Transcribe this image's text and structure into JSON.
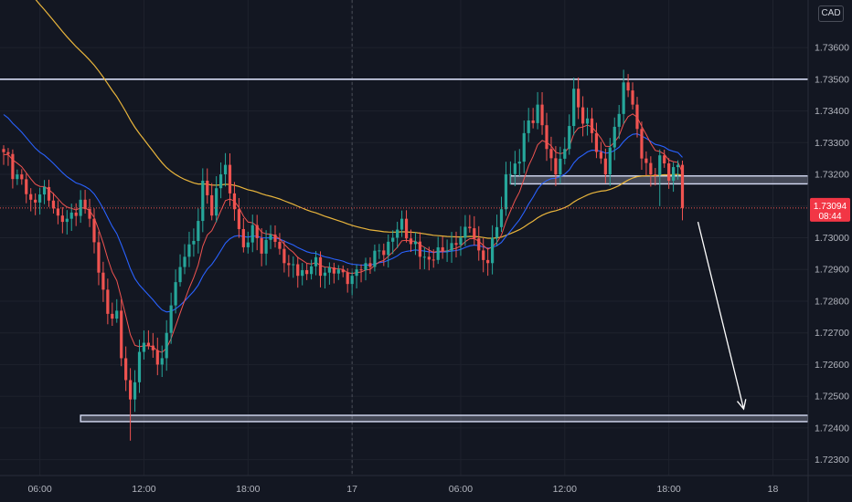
{
  "currency": "CAD",
  "colors": {
    "background": "#131722",
    "grid": "#1e222d",
    "up": "#26a69a",
    "down": "#ef5350",
    "ema_fast": "#ef5350",
    "ema_mid": "#2962ff",
    "ema_slow": "#e9b53c",
    "level": "#d6dcf5",
    "price_tag": "#f23645"
  },
  "price_tag": {
    "value": "1.73094",
    "countdown": "08:44"
  },
  "chart_data": {
    "type": "candlestick",
    "title": "",
    "ylim": [
      1.7225,
      1.7375
    ],
    "y_ticks": [
      "1.73600",
      "1.73500",
      "1.73400",
      "1.73300",
      "1.73200",
      "1.73100",
      "1.73000",
      "1.72900",
      "1.72800",
      "1.72700",
      "1.72600",
      "1.72500",
      "1.72400",
      "1.72300"
    ],
    "x_ticks": [
      "06:00",
      "12:00",
      "18:00",
      "17",
      "06:00",
      "12:00",
      "18:00",
      "18"
    ],
    "day_separator": "17",
    "keyframes": [
      {
        "i": 0,
        "p": 1.7327
      },
      {
        "i": 6,
        "p": 1.7312
      },
      {
        "i": 9,
        "p": 1.7316
      },
      {
        "i": 12,
        "p": 1.7307
      },
      {
        "i": 14,
        "p": 1.7306
      },
      {
        "i": 17,
        "p": 1.7312
      },
      {
        "i": 19,
        "p": 1.7306
      },
      {
        "i": 21,
        "p": 1.7289
      },
      {
        "i": 23,
        "p": 1.7276
      },
      {
        "i": 25,
        "p": 1.7277
      },
      {
        "i": 26,
        "p": 1.7262
      },
      {
        "i": 28,
        "p": 1.7249
      },
      {
        "i": 30,
        "p": 1.7264
      },
      {
        "i": 32,
        "p": 1.7266
      },
      {
        "i": 34,
        "p": 1.726
      },
      {
        "i": 36,
        "p": 1.727
      },
      {
        "i": 38,
        "p": 1.7286
      },
      {
        "i": 40,
        "p": 1.7294
      },
      {
        "i": 42,
        "p": 1.7299
      },
      {
        "i": 44,
        "p": 1.7318
      },
      {
        "i": 46,
        "p": 1.7307
      },
      {
        "i": 48,
        "p": 1.732
      },
      {
        "i": 49,
        "p": 1.7323
      },
      {
        "i": 50,
        "p": 1.7314
      },
      {
        "i": 51,
        "p": 1.7309
      },
      {
        "i": 53,
        "p": 1.7297
      },
      {
        "i": 55,
        "p": 1.7304
      },
      {
        "i": 57,
        "p": 1.7295
      },
      {
        "i": 59,
        "p": 1.7301
      },
      {
        "i": 62,
        "p": 1.7292
      },
      {
        "i": 65,
        "p": 1.7288
      },
      {
        "i": 68,
        "p": 1.7291
      },
      {
        "i": 71,
        "p": 1.7289
      },
      {
        "i": 74,
        "p": 1.729
      },
      {
        "i": 77,
        "p": 1.7288
      },
      {
        "i": 80,
        "p": 1.7292
      },
      {
        "i": 83,
        "p": 1.7296
      },
      {
        "i": 86,
        "p": 1.73
      },
      {
        "i": 88,
        "p": 1.7306
      },
      {
        "i": 90,
        "p": 1.7298
      },
      {
        "i": 92,
        "p": 1.7294
      },
      {
        "i": 95,
        "p": 1.7293
      },
      {
        "i": 98,
        "p": 1.7296
      },
      {
        "i": 101,
        "p": 1.73
      },
      {
        "i": 103,
        "p": 1.7303
      },
      {
        "i": 105,
        "p": 1.7296
      },
      {
        "i": 107,
        "p": 1.7292
      },
      {
        "i": 108,
        "p": 1.73
      },
      {
        "i": 110,
        "p": 1.7309
      },
      {
        "i": 111,
        "p": 1.732
      },
      {
        "i": 114,
        "p": 1.7324
      },
      {
        "i": 116,
        "p": 1.7337
      },
      {
        "i": 118,
        "p": 1.7342
      },
      {
        "i": 120,
        "p": 1.7328
      },
      {
        "i": 122,
        "p": 1.732
      },
      {
        "i": 124,
        "p": 1.7328
      },
      {
        "i": 126,
        "p": 1.7347
      },
      {
        "i": 128,
        "p": 1.7336
      },
      {
        "i": 130,
        "p": 1.7333
      },
      {
        "i": 132,
        "p": 1.7325
      },
      {
        "i": 133,
        "p": 1.732
      },
      {
        "i": 135,
        "p": 1.7335
      },
      {
        "i": 137,
        "p": 1.7349
      },
      {
        "i": 139,
        "p": 1.7342
      },
      {
        "i": 141,
        "p": 1.7325
      },
      {
        "i": 143,
        "p": 1.732
      },
      {
        "i": 145,
        "p": 1.7326
      },
      {
        "i": 147,
        "p": 1.7318
      },
      {
        "i": 149,
        "p": 1.7323
      },
      {
        "i": 150,
        "p": 1.73094
      }
    ],
    "levels": [
      {
        "type": "line",
        "price": 1.735
      },
      {
        "type": "zone",
        "from": 1.7317,
        "to": 1.73195
      },
      {
        "type": "zone",
        "from": 1.7242,
        "to": 1.7244
      }
    ],
    "projection": {
      "from": 1.7305,
      "to": 1.7246,
      "direction": "down"
    }
  }
}
